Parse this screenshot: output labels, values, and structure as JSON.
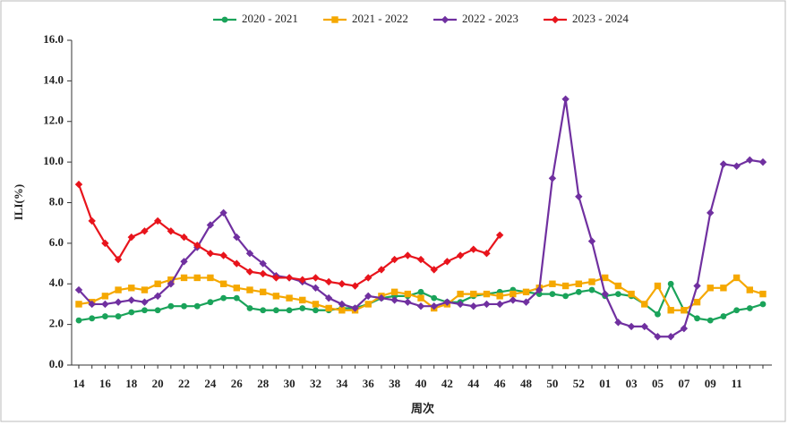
{
  "chart_data": {
    "type": "line",
    "y_label": "ILI(%)",
    "x_label": "周次",
    "categories": [
      "14",
      null,
      "16",
      null,
      "18",
      null,
      "20",
      null,
      "22",
      null,
      "24",
      null,
      "26",
      null,
      "28",
      null,
      "30",
      null,
      "32",
      null,
      "34",
      null,
      "36",
      null,
      "38",
      null,
      "40",
      null,
      "42",
      null,
      "44",
      null,
      "46",
      null,
      "48",
      null,
      "50",
      null,
      "52",
      null,
      "01",
      null,
      "03",
      null,
      "05",
      null,
      "07",
      null,
      "09",
      null,
      "11",
      null,
      null
    ],
    "ylim": [
      0,
      16
    ],
    "yticks": [
      {
        "value": 0,
        "label": "0.0"
      },
      {
        "value": 2,
        "label": "2.0"
      },
      {
        "value": 4,
        "label": "4.0"
      },
      {
        "value": 6,
        "label": "6.0"
      },
      {
        "value": 8,
        "label": "8.0"
      },
      {
        "value": 10,
        "label": "10.0"
      },
      {
        "value": 12,
        "label": "12.0"
      },
      {
        "value": 14,
        "label": "14.0"
      },
      {
        "value": 16,
        "label": "16.0"
      }
    ],
    "legend": "top",
    "series": [
      {
        "name": "2020 - 2021",
        "color": "#1aa35a",
        "marker": "circle",
        "values": [
          2.2,
          2.3,
          2.4,
          2.4,
          2.6,
          2.7,
          2.7,
          2.9,
          2.9,
          2.9,
          3.1,
          3.3,
          3.3,
          2.8,
          2.7,
          2.7,
          2.7,
          2.8,
          2.7,
          2.7,
          2.8,
          2.8,
          3.0,
          3.3,
          3.4,
          3.4,
          3.6,
          3.3,
          3.1,
          3.1,
          3.4,
          3.5,
          3.6,
          3.7,
          3.6,
          3.5,
          3.5,
          3.4,
          3.6,
          3.7,
          3.4,
          3.5,
          3.4,
          3.0,
          2.5,
          4.0,
          2.7,
          2.3,
          2.2,
          2.4,
          2.7,
          2.8,
          3.0
        ]
      },
      {
        "name": "2021 - 2022",
        "color": "#f5a800",
        "marker": "square",
        "values": [
          3.0,
          3.1,
          3.4,
          3.7,
          3.8,
          3.7,
          4.0,
          4.2,
          4.3,
          4.3,
          4.3,
          4.0,
          3.8,
          3.7,
          3.6,
          3.4,
          3.3,
          3.2,
          3.0,
          2.8,
          2.7,
          2.7,
          3.0,
          3.4,
          3.6,
          3.5,
          3.3,
          2.8,
          3.0,
          3.5,
          3.5,
          3.5,
          3.4,
          3.5,
          3.6,
          3.8,
          4.0,
          3.9,
          4.0,
          4.1,
          4.3,
          3.9,
          3.5,
          3.0,
          3.9,
          2.7,
          2.7,
          3.1,
          3.8,
          3.8,
          4.3,
          3.7,
          3.5
        ]
      },
      {
        "name": "2022 - 2023",
        "color": "#7030a0",
        "marker": "diamond",
        "values": [
          3.7,
          3.0,
          3.0,
          3.1,
          3.2,
          3.1,
          3.4,
          4.0,
          5.1,
          5.8,
          6.9,
          7.5,
          6.3,
          5.5,
          5.0,
          4.4,
          4.3,
          4.1,
          3.8,
          3.3,
          3.0,
          2.8,
          3.4,
          3.3,
          3.2,
          3.1,
          2.9,
          2.9,
          3.1,
          3.0,
          2.9,
          3.0,
          3.0,
          3.2,
          3.1,
          3.7,
          9.2,
          13.1,
          8.3,
          6.1,
          3.5,
          2.1,
          1.9,
          1.9,
          1.4,
          1.4,
          1.8,
          3.9,
          7.5,
          9.9,
          9.8,
          10.1,
          10.0
        ]
      },
      {
        "name": "2023 - 2024",
        "color": "#e8141c",
        "marker": "diamond",
        "values": [
          8.9,
          7.1,
          6.0,
          5.2,
          6.3,
          6.6,
          7.1,
          6.6,
          6.3,
          5.9,
          5.5,
          5.4,
          5.0,
          4.6,
          4.5,
          4.3,
          4.3,
          4.2,
          4.3,
          4.1,
          4.0,
          3.9,
          4.3,
          4.7,
          5.2,
          5.4,
          5.2,
          4.7,
          5.1,
          5.4,
          5.7,
          5.5,
          6.4,
          null,
          null,
          null,
          null,
          null,
          null,
          null,
          null,
          null,
          null,
          null,
          null,
          null,
          null,
          null,
          null,
          null,
          null,
          null,
          null
        ]
      }
    ]
  }
}
